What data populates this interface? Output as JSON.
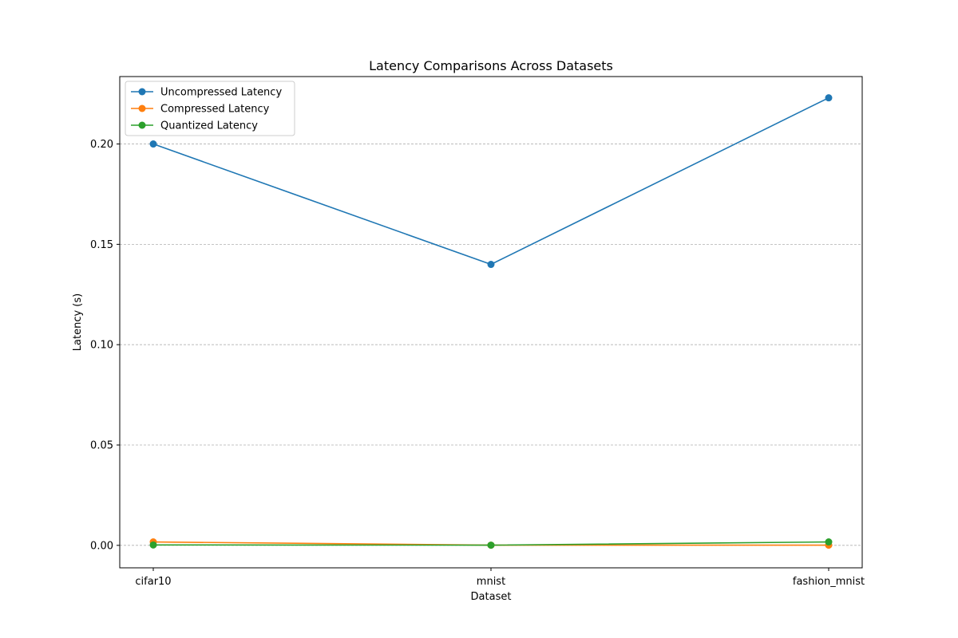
{
  "chart_data": {
    "type": "line",
    "title": "Latency Comparisons Across Datasets",
    "xlabel": "Dataset",
    "ylabel": "Latency (s)",
    "categories": [
      "cifar10",
      "mnist",
      "fashion_mnist"
    ],
    "ylim": [
      -0.0112,
      0.2336
    ],
    "yticks": [
      0.0,
      0.05,
      0.1,
      0.15,
      0.2
    ],
    "ytick_labels": [
      "0.00",
      "0.05",
      "0.10",
      "0.15",
      "0.20"
    ],
    "grid": "y-dashed",
    "legend_position": "top-left",
    "series": [
      {
        "name": "Uncompressed Latency",
        "color": "#1f77b4",
        "values": [
          0.2,
          0.14,
          0.223
        ]
      },
      {
        "name": "Compressed Latency",
        "color": "#ff7f0e",
        "values": [
          0.0017,
          0.0001,
          0.0001
        ]
      },
      {
        "name": "Quantized Latency",
        "color": "#2ca02c",
        "values": [
          0.0002,
          0.0001,
          0.0017
        ]
      }
    ]
  }
}
